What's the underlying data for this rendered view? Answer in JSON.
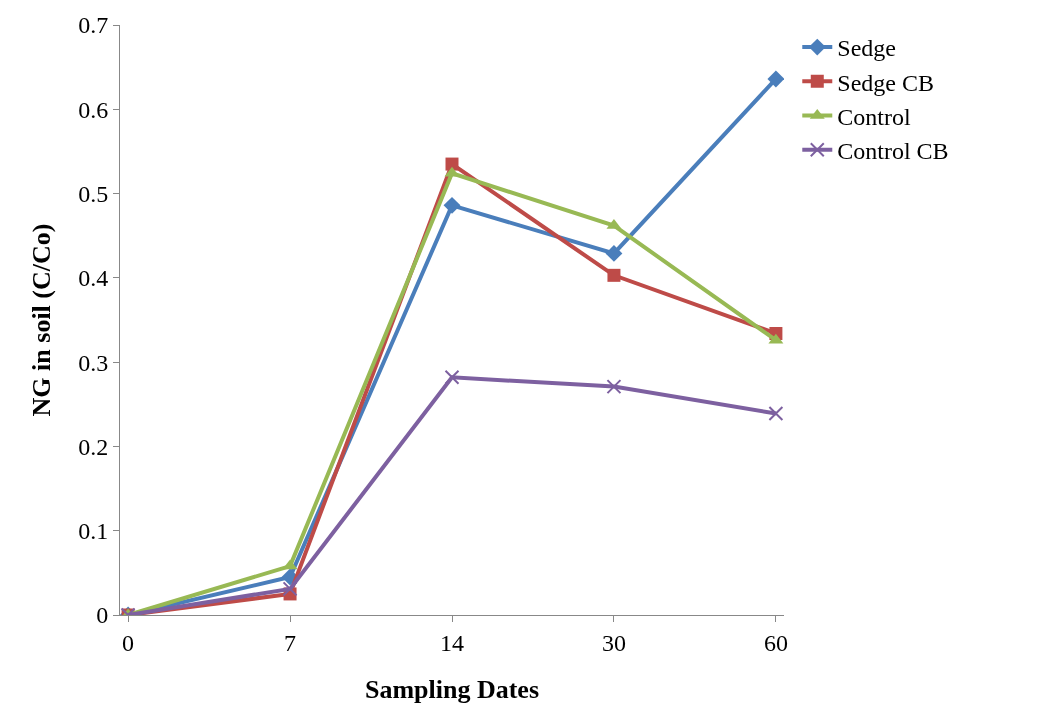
{
  "chart_data": {
    "type": "line",
    "xlabel": "Sampling Dates",
    "ylabel": "NG in soil (C/Co)",
    "categories": [
      "0",
      "7",
      "14",
      "30",
      "60"
    ],
    "series": [
      {
        "name": "Sedge",
        "color": "#4a7ebb",
        "marker": "diamond",
        "values": [
          0,
          0.045,
          0.486,
          0.429,
          0.636
        ]
      },
      {
        "name": "Sedge CB",
        "color": "#be4b48",
        "marker": "square",
        "values": [
          0,
          0.025,
          0.535,
          0.403,
          0.334
        ]
      },
      {
        "name": "Control",
        "color": "#98b954",
        "marker": "triangle",
        "values": [
          0,
          0.058,
          0.524,
          0.462,
          0.326
        ]
      },
      {
        "name": "Control CB",
        "color": "#7d60a0",
        "marker": "cross",
        "values": [
          0,
          0.031,
          0.282,
          0.271,
          0.239
        ]
      }
    ],
    "ylim": [
      0,
      0.7
    ],
    "yticks": [
      0,
      0.1,
      0.2,
      0.3,
      0.4,
      0.5,
      0.6,
      0.7
    ],
    "legend": "top right",
    "line_style": "solid"
  }
}
